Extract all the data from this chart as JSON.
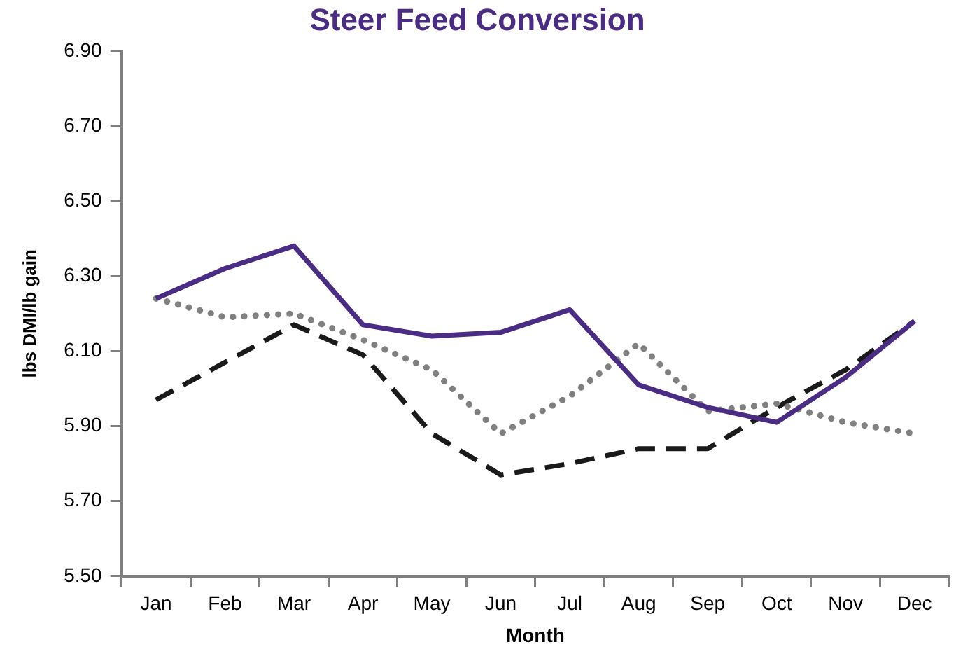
{
  "chart_data": {
    "type": "line",
    "title": "Steer Feed Conversion",
    "xlabel": "Month",
    "ylabel": "lbs DMI/lb gain",
    "categories": [
      "Jan",
      "Feb",
      "Mar",
      "Apr",
      "May",
      "Jun",
      "Jul",
      "Aug",
      "Sep",
      "Oct",
      "Nov",
      "Dec"
    ],
    "series": [
      {
        "color": "#4b2c85",
        "line_style": "solid",
        "values": [
          6.24,
          6.32,
          6.38,
          6.17,
          6.14,
          6.15,
          6.21,
          6.01,
          5.95,
          5.91,
          6.03,
          6.18
        ]
      },
      {
        "color": "#808080",
        "line_style": "dotted",
        "values": [
          6.24,
          6.19,
          6.2,
          6.13,
          6.05,
          5.88,
          5.98,
          6.12,
          5.94,
          5.96,
          5.91,
          5.88
        ]
      },
      {
        "color": "#1a1a1a",
        "line_style": "dashed",
        "values": [
          5.97,
          6.07,
          6.17,
          6.09,
          5.88,
          5.77,
          5.8,
          5.84,
          5.84,
          5.95,
          6.05,
          6.18
        ]
      }
    ],
    "ylim": [
      5.5,
      6.9
    ],
    "yticks": [
      {
        "value": 5.5,
        "label": "5.50"
      },
      {
        "value": 5.7,
        "label": "5.70"
      },
      {
        "value": 5.9,
        "label": "5.90"
      },
      {
        "value": 6.1,
        "label": "6.10"
      },
      {
        "value": 6.3,
        "label": "6.30"
      },
      {
        "value": 6.5,
        "label": "6.50"
      },
      {
        "value": 6.7,
        "label": "6.70"
      },
      {
        "value": 6.9,
        "label": "6.90"
      }
    ],
    "grid": false,
    "legend": false,
    "marker": "none"
  }
}
